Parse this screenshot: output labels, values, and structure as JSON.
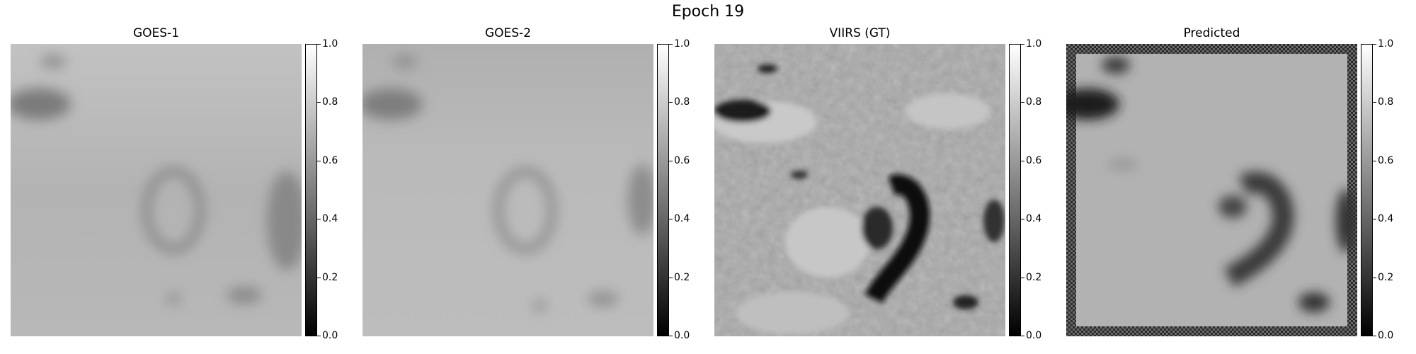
{
  "figure": {
    "title": "Epoch 19"
  },
  "panels": [
    {
      "title": "GOES-1"
    },
    {
      "title": "GOES-2"
    },
    {
      "title": "VIIRS (GT)"
    },
    {
      "title": "Predicted"
    }
  ],
  "colorbar": {
    "colormap": "gray",
    "range": [
      0.0,
      1.0
    ],
    "ticks": [
      "0.0",
      "0.2",
      "0.4",
      "0.6",
      "0.8",
      "1.0"
    ]
  }
}
